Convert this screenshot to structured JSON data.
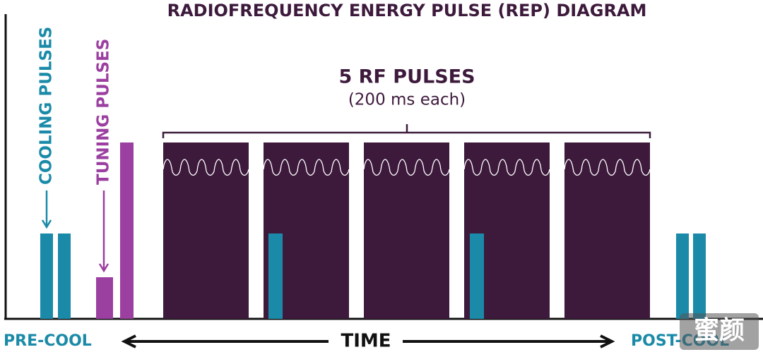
{
  "title": "RADIOFREQUENCY ENERGY PULSE (REP) DIAGRAM",
  "rf_pulses": {
    "label": "5 RF PULSES",
    "note": "(200 ms each)"
  },
  "cooling_label": "COOLING PULSES",
  "tuning_label": "TUNING PULSES",
  "axis": {
    "left": "PRE-COOL",
    "center": "TIME",
    "right": "POST-COOL"
  },
  "watermark": "蜜颜"
}
